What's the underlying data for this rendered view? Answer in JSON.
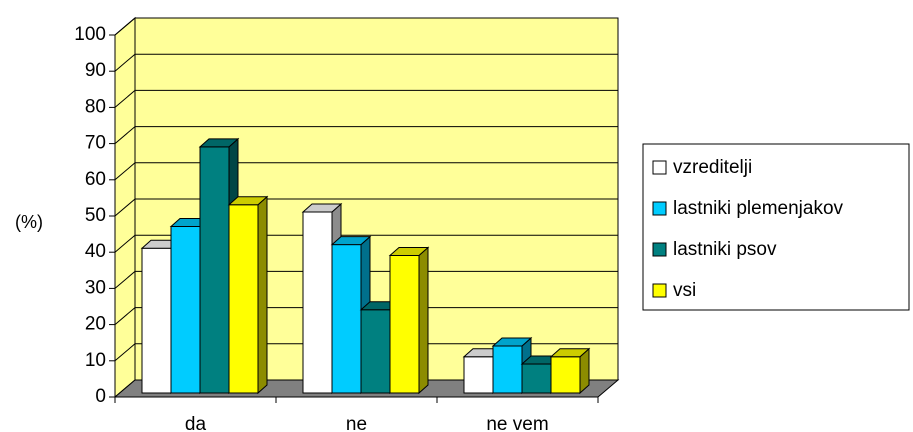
{
  "chart_data": {
    "type": "bar",
    "three_d": true,
    "title": "",
    "xlabel": "",
    "ylabel": "(%)",
    "ylim": [
      0,
      100
    ],
    "yticks": [
      0,
      10,
      20,
      30,
      40,
      50,
      60,
      70,
      80,
      90,
      100
    ],
    "categories": [
      "da",
      "ne",
      "ne vem"
    ],
    "grid": true,
    "legend_position": "right",
    "plot_background": "#FFFF99",
    "floor_color": "#808080",
    "series": [
      {
        "name": "vzreditelji",
        "values": [
          40,
          50,
          10
        ],
        "color": "#FFFFFF"
      },
      {
        "name": "lastniki plemenjakov",
        "values": [
          46,
          41,
          13
        ],
        "color": "#00CCFF"
      },
      {
        "name": "lastniki psov",
        "values": [
          68,
          23,
          8
        ],
        "color": "#008080"
      },
      {
        "name": "vsi",
        "values": [
          52,
          38,
          10
        ],
        "color": "#FFFF00"
      }
    ]
  }
}
